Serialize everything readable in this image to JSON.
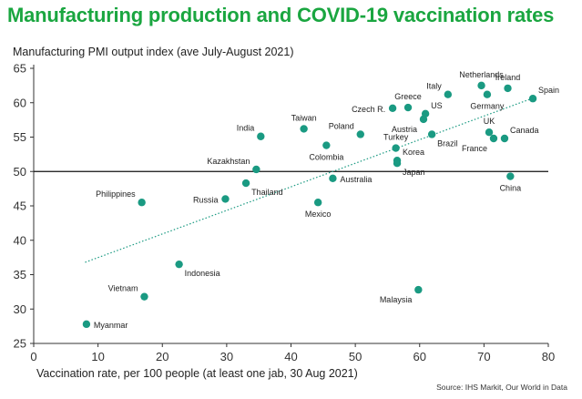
{
  "chart_data": {
    "type": "scatter",
    "title": "Manufacturing production and COVID-19 vaccination rates",
    "ylabel": "Manufacturing PMI output index (ave July-August 2021)",
    "xlabel": "Vaccination rate, per 100 people (at least one jab, 30 Aug 2021)",
    "source": "Source: IHS Markit, Our World in Data",
    "xlim": [
      0,
      80
    ],
    "ylim": [
      25,
      65
    ],
    "x_ticks": [
      "0",
      "10",
      "20",
      "30",
      "40",
      "50",
      "60",
      "70",
      "80"
    ],
    "y_ticks": [
      "25",
      "30",
      "35",
      "40",
      "45",
      "50",
      "55",
      "60",
      "65"
    ],
    "reference_line_y": 50,
    "trendline": {
      "from": [
        8,
        36.8
      ],
      "to": [
        78,
        60.8
      ]
    },
    "colors": {
      "title": "#1aa640",
      "point": "#1a9a82",
      "trend": "#1a9a82",
      "axis": "#333333"
    },
    "points": [
      {
        "label": "Myanmar",
        "x": 8.2,
        "y": 27.8,
        "label_pos": "right"
      },
      {
        "label": "Vietnam",
        "x": 17.2,
        "y": 31.8,
        "label_pos": "left-above"
      },
      {
        "label": "Philippines",
        "x": 16.8,
        "y": 45.5,
        "label_pos": "left-above"
      },
      {
        "label": "Indonesia",
        "x": 22.6,
        "y": 36.5,
        "label_pos": "right-below"
      },
      {
        "label": "Russia",
        "x": 29.8,
        "y": 46.0,
        "label_pos": "left"
      },
      {
        "label": "Thailand",
        "x": 33.0,
        "y": 48.3,
        "label_pos": "right-below"
      },
      {
        "label": "Kazakhstan",
        "x": 34.6,
        "y": 50.3,
        "label_pos": "left-above"
      },
      {
        "label": "India",
        "x": 35.3,
        "y": 55.1,
        "label_pos": "left-above"
      },
      {
        "label": "Taiwan",
        "x": 42.0,
        "y": 56.2,
        "label_pos": "above"
      },
      {
        "label": "Mexico",
        "x": 44.2,
        "y": 45.5,
        "label_pos": "below"
      },
      {
        "label": "Colombia",
        "x": 45.5,
        "y": 53.8,
        "label_pos": "below"
      },
      {
        "label": "Australia",
        "x": 46.5,
        "y": 49.0,
        "label_pos": "right"
      },
      {
        "label": "Poland",
        "x": 50.8,
        "y": 55.4,
        "label_pos": "left-above"
      },
      {
        "label": "Czech R.",
        "x": 55.8,
        "y": 59.2,
        "label_pos": "left"
      },
      {
        "label": "Turkey",
        "x": 56.3,
        "y": 53.4,
        "label_pos": "above"
      },
      {
        "label": "Korea",
        "x": 56.5,
        "y": 51.6,
        "label_pos": "right-above"
      },
      {
        "label": "Japan",
        "x": 56.5,
        "y": 51.2,
        "label_pos": "right-below"
      },
      {
        "label": "Greece",
        "x": 58.2,
        "y": 59.3,
        "label_pos": "above"
      },
      {
        "label": "Malaysia",
        "x": 59.8,
        "y": 32.8,
        "label_pos": "left-below"
      },
      {
        "label": "Austria",
        "x": 60.6,
        "y": 57.6,
        "label_pos": "left-below"
      },
      {
        "label": "US",
        "x": 60.9,
        "y": 58.4,
        "label_pos": "right-above"
      },
      {
        "label": "Brazil",
        "x": 61.9,
        "y": 55.4,
        "label_pos": "right-below"
      },
      {
        "label": "Italy",
        "x": 64.4,
        "y": 61.2,
        "label_pos": "left-above"
      },
      {
        "label": "Netherlands",
        "x": 69.6,
        "y": 62.5,
        "label_pos": "above"
      },
      {
        "label": "Germany",
        "x": 70.5,
        "y": 61.2,
        "label_pos": "below"
      },
      {
        "label": "UK",
        "x": 70.8,
        "y": 55.7,
        "label_pos": "above"
      },
      {
        "label": "France",
        "x": 71.5,
        "y": 54.8,
        "label_pos": "left-below"
      },
      {
        "label": "Canada",
        "x": 73.2,
        "y": 54.8,
        "label_pos": "right-above"
      },
      {
        "label": "Ireland",
        "x": 73.7,
        "y": 62.1,
        "label_pos": "above"
      },
      {
        "label": "China",
        "x": 74.1,
        "y": 49.3,
        "label_pos": "below"
      },
      {
        "label": "Spain",
        "x": 77.6,
        "y": 60.6,
        "label_pos": "right-above"
      }
    ]
  }
}
